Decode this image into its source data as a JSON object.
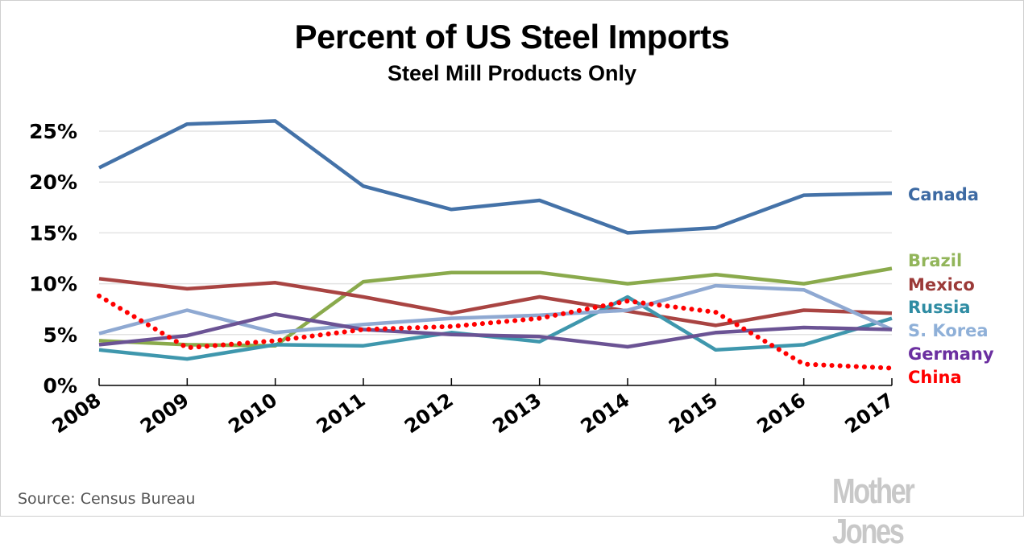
{
  "chart_data": {
    "type": "line",
    "title": "Percent of US Steel Imports",
    "subtitle": "Steel Mill Products Only",
    "xlabel": "",
    "ylabel": "",
    "x": [
      "2008",
      "2009",
      "2010",
      "2011",
      "2012",
      "2013",
      "2014",
      "2015",
      "2016",
      "2017"
    ],
    "ylim": [
      0,
      25
    ],
    "yticks": [
      0,
      5,
      10,
      15,
      20,
      25
    ],
    "ytick_labels": [
      "0%",
      "5%",
      "10%",
      "15%",
      "20%",
      "25%"
    ],
    "grid": true,
    "legend_placement": "right (direct labels at line ends)",
    "series": [
      {
        "name": "Canada",
        "color": "#4472a8",
        "style": "solid",
        "values": [
          21.4,
          25.7,
          26.0,
          19.6,
          17.3,
          18.2,
          15.0,
          15.5,
          18.7,
          18.9
        ]
      },
      {
        "name": "Brazil",
        "color": "#8aaa4c",
        "style": "solid",
        "values": [
          4.4,
          4.0,
          3.9,
          10.2,
          11.1,
          11.1,
          10.0,
          10.9,
          10.0,
          11.5
        ]
      },
      {
        "name": "Mexico",
        "color": "#a94442",
        "style": "solid",
        "values": [
          10.5,
          9.5,
          10.1,
          8.7,
          7.1,
          8.7,
          7.3,
          5.9,
          7.4,
          7.1
        ]
      },
      {
        "name": "Russia",
        "color": "#3f97ad",
        "style": "solid",
        "values": [
          3.5,
          2.6,
          4.0,
          3.9,
          5.2,
          4.3,
          8.7,
          3.5,
          4.0,
          6.6
        ]
      },
      {
        "name": "S. Korea",
        "color": "#8fa9d2",
        "style": "solid",
        "values": [
          5.1,
          7.4,
          5.2,
          6.0,
          6.6,
          6.9,
          7.4,
          9.8,
          9.4,
          5.5
        ]
      },
      {
        "name": "Germany",
        "color": "#6b5394",
        "style": "solid",
        "values": [
          4.0,
          4.9,
          7.0,
          5.5,
          5.0,
          4.8,
          3.8,
          5.2,
          5.7,
          5.5
        ]
      },
      {
        "name": "China",
        "color": "#ff0000",
        "style": "dotted",
        "values": [
          8.8,
          3.7,
          4.4,
          5.5,
          5.8,
          6.6,
          8.3,
          7.2,
          2.1,
          1.7
        ]
      }
    ],
    "legend_labels": [
      {
        "name": "Canada",
        "color": "#3d6aa3"
      },
      {
        "name": "Brazil",
        "color": "#92b55a"
      },
      {
        "name": "Mexico",
        "color": "#9b3a38"
      },
      {
        "name": "Russia",
        "color": "#2f8ca3"
      },
      {
        "name": "S. Korea",
        "color": "#8fb0d8"
      },
      {
        "name": "Germany",
        "color": "#6b2fa0"
      },
      {
        "name": "China",
        "color": "#ff0000"
      }
    ]
  },
  "footer": {
    "source": "Source: Census Bureau",
    "brand": "Mother Jones"
  }
}
